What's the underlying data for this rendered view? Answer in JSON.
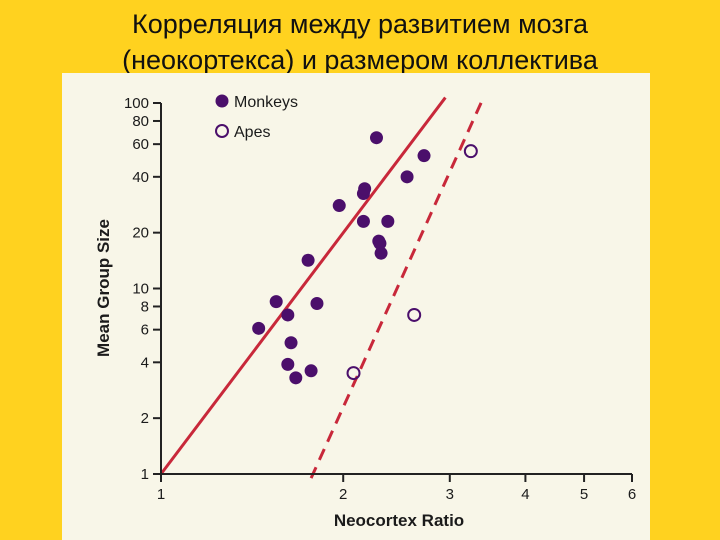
{
  "slide": {
    "title_line1": "Корреляция между развитием мозга",
    "title_line2": "(неокортекса) и размером коллектива"
  },
  "colors": {
    "background": "#FFD21F",
    "plot_background": "#F8F6E8",
    "monkeys": "#4B0F6B",
    "regression_line": "#C8283A",
    "axis": "#222222"
  },
  "chart_data": {
    "type": "scatter",
    "title": "",
    "xlabel": "Neocortex Ratio",
    "ylabel": "Mean Group Size",
    "x_scale": "log",
    "y_scale": "log",
    "xlim": [
      1,
      6
    ],
    "ylim": [
      1,
      100
    ],
    "x_ticks": [
      1,
      2,
      3,
      4,
      5,
      6
    ],
    "y_ticks": [
      1,
      2,
      4,
      6,
      8,
      10,
      20,
      40,
      60,
      80,
      100
    ],
    "grid": false,
    "legend_position": "top-left",
    "series": [
      {
        "name": "Monkeys",
        "marker": "filled-circle",
        "points": [
          [
            1.45,
            6.1
          ],
          [
            1.55,
            8.5
          ],
          [
            1.62,
            7.2
          ],
          [
            1.64,
            5.1
          ],
          [
            1.62,
            3.9
          ],
          [
            1.67,
            3.3
          ],
          [
            1.77,
            3.6
          ],
          [
            1.81,
            8.3
          ],
          [
            1.75,
            14.2
          ],
          [
            1.97,
            28
          ],
          [
            2.16,
            23
          ],
          [
            2.16,
            32.5
          ],
          [
            2.17,
            34.5
          ],
          [
            2.27,
            65
          ],
          [
            2.29,
            18
          ],
          [
            2.31,
            15.5
          ],
          [
            2.3,
            17.5
          ],
          [
            2.37,
            23
          ],
          [
            2.55,
            40
          ],
          [
            2.72,
            52
          ]
        ]
      },
      {
        "name": "Apes",
        "marker": "open-circle",
        "points": [
          [
            2.08,
            3.5
          ],
          [
            2.62,
            7.2
          ],
          [
            3.25,
            55
          ]
        ]
      }
    ],
    "regression_lines": [
      {
        "series": "Monkeys",
        "style": "solid",
        "from": [
          1.0,
          1.0
        ],
        "to": [
          2.95,
          107
        ]
      },
      {
        "series": "Apes",
        "style": "dashed",
        "from": [
          1.77,
          0.95
        ],
        "to": [
          3.41,
          107
        ]
      }
    ]
  }
}
